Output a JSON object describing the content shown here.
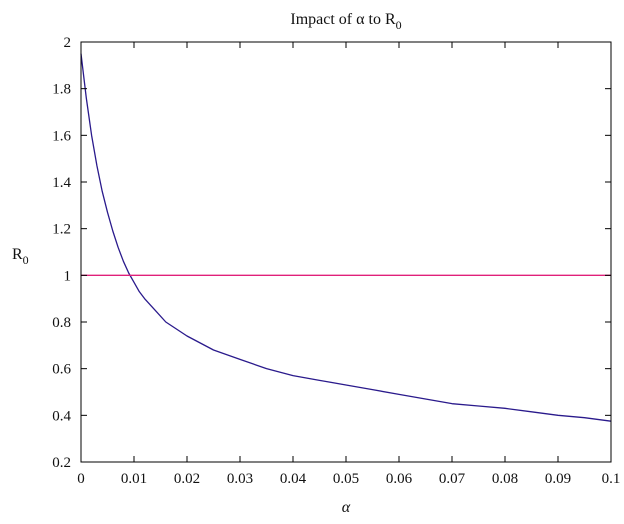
{
  "chart_data": {
    "type": "line",
    "title": "Impact of α to R",
    "title_subscript": "0",
    "xlabel": "α",
    "ylabel": "R",
    "ylabel_subscript": "0",
    "xlim": [
      0,
      0.1
    ],
    "ylim": [
      0.2,
      2
    ],
    "xticks": [
      0,
      0.01,
      0.02,
      0.03,
      0.04,
      0.05,
      0.06,
      0.07,
      0.08,
      0.09,
      0.1
    ],
    "yticks": [
      0.2,
      0.4,
      0.6,
      0.8,
      1,
      1.2,
      1.4,
      1.6,
      1.8,
      2
    ],
    "xtick_labels": [
      "0",
      "0.01",
      "0.02",
      "0.03",
      "0.04",
      "0.05",
      "0.06",
      "0.07",
      "0.08",
      "0.09",
      "0.1"
    ],
    "ytick_labels": [
      "0.2",
      "0.4",
      "0.6",
      "0.8",
      "1",
      "1.2",
      "1.4",
      "1.6",
      "1.8",
      "2"
    ],
    "grid": false,
    "legend": "none",
    "series": [
      {
        "color": "#2a1a8c",
        "x": [
          0,
          0.001,
          0.002,
          0.003,
          0.004,
          0.005,
          0.006,
          0.007,
          0.008,
          0.009,
          0.01,
          0.011,
          0.012,
          0.014,
          0.016,
          0.018,
          0.02,
          0.025,
          0.03,
          0.035,
          0.04,
          0.045,
          0.05,
          0.055,
          0.06,
          0.065,
          0.07,
          0.075,
          0.08,
          0.085,
          0.09,
          0.095,
          0.1
        ],
        "y": [
          1.95,
          1.76,
          1.6,
          1.47,
          1.36,
          1.27,
          1.19,
          1.12,
          1.06,
          1.01,
          0.97,
          0.93,
          0.9,
          0.85,
          0.8,
          0.77,
          0.74,
          0.68,
          0.64,
          0.6,
          0.57,
          0.55,
          0.53,
          0.51,
          0.49,
          0.47,
          0.45,
          0.44,
          0.43,
          0.415,
          0.4,
          0.39,
          0.375
        ]
      },
      {
        "color": "#e0207a",
        "x": [
          0,
          0.1
        ],
        "y": [
          1,
          1
        ]
      }
    ]
  }
}
